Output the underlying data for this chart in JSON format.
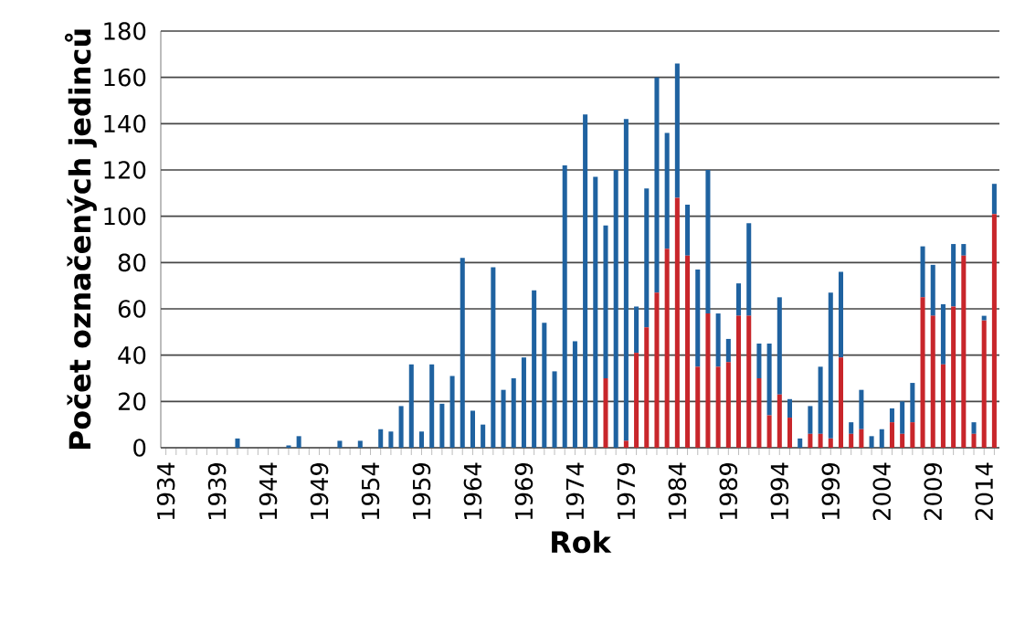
{
  "chart_data": {
    "type": "bar",
    "stacked": true,
    "xlabel": "Rok",
    "ylabel": "Počet označených jedinců",
    "ylim": [
      0,
      180
    ],
    "yticks": [
      0,
      20,
      40,
      60,
      80,
      100,
      120,
      140,
      160,
      180
    ],
    "grid": "y",
    "categories": [
      "1934",
      null,
      null,
      null,
      null,
      "1939",
      null,
      null,
      null,
      null,
      "1944",
      null,
      null,
      null,
      null,
      "1949",
      null,
      null,
      null,
      null,
      "1954",
      null,
      null,
      null,
      null,
      "1959",
      null,
      null,
      null,
      null,
      "1964",
      null,
      null,
      null,
      null,
      "1969",
      null,
      null,
      null,
      null,
      "1974",
      null,
      null,
      null,
      null,
      "1979",
      null,
      null,
      null,
      null,
      "1984",
      null,
      null,
      null,
      null,
      "1989",
      null,
      null,
      null,
      null,
      "1994",
      null,
      null,
      null,
      null,
      "1999",
      null,
      null,
      null,
      null,
      "2004",
      null,
      null,
      null,
      null,
      "2009",
      null,
      null,
      null,
      null,
      "2014",
      null
    ],
    "series": [
      {
        "color": "#c8262b",
        "values": [
          0,
          0,
          0,
          0,
          0,
          0,
          0,
          0,
          0,
          0,
          0,
          0,
          0,
          0,
          0,
          0,
          0,
          0,
          0,
          0,
          0,
          0,
          0,
          0,
          0,
          0,
          0,
          0,
          0,
          0,
          0,
          0,
          0,
          0,
          0,
          0,
          0,
          0,
          0,
          0,
          0,
          0,
          0,
          30,
          0,
          3,
          41,
          52,
          67,
          86,
          108,
          83,
          35,
          58,
          35,
          37,
          57,
          57,
          30,
          14,
          23,
          13,
          0,
          6,
          6,
          4,
          39,
          6,
          8,
          0,
          0,
          11,
          6,
          11,
          65,
          57,
          36,
          61,
          83,
          6,
          55,
          101
        ]
      },
      {
        "color": "#1f62a0",
        "values": [
          0,
          0,
          0,
          0,
          0,
          0,
          0,
          4,
          0,
          0,
          0,
          0,
          1,
          5,
          0,
          0,
          0,
          3,
          0,
          3,
          0,
          8,
          7,
          18,
          36,
          7,
          36,
          19,
          31,
          82,
          16,
          10,
          78,
          25,
          30,
          39,
          68,
          54,
          33,
          122,
          46,
          144,
          117,
          66,
          120,
          139,
          20,
          60,
          93,
          50,
          58,
          22,
          42,
          62,
          23,
          10,
          14,
          40,
          15,
          31,
          42,
          8,
          4,
          12,
          29,
          63,
          37,
          5,
          17,
          5,
          8,
          6,
          14,
          17,
          22,
          22,
          26,
          27,
          5,
          5,
          2,
          13
        ]
      }
    ]
  }
}
